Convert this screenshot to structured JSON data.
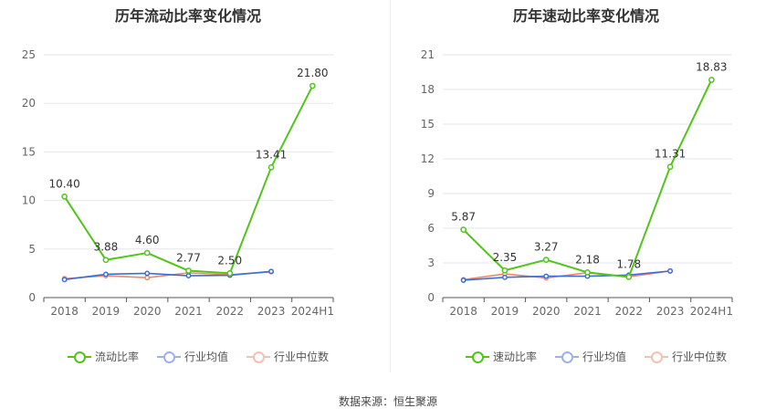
{
  "footer": {
    "source": "数据来源：恒生聚源"
  },
  "colors": {
    "green": "#52c41a",
    "blue": "#3b6fd6",
    "orange": "#ee8866",
    "grid": "#e6e6ee",
    "axis": "#555555"
  },
  "chart_data": [
    {
      "type": "line",
      "title": "历年流动比率变化情况",
      "categories": [
        "2018",
        "2019",
        "2020",
        "2021",
        "2022",
        "2023",
        "2024H1"
      ],
      "ylim": [
        0,
        25
      ],
      "yticks": [
        0,
        5,
        10,
        15,
        20,
        25
      ],
      "grid": true,
      "legend_position": "bottom",
      "series": [
        {
          "name": "流动比率",
          "color": "#52c41a",
          "values": [
            10.4,
            3.88,
            4.6,
            2.77,
            2.5,
            13.41,
            21.8
          ],
          "labels": [
            "10.40",
            "3.88",
            "4.60",
            "2.77",
            "2.50",
            "13.41",
            "21.80"
          ],
          "show_labels": true
        },
        {
          "name": "行业均值",
          "color": "#3b6fd6",
          "values": [
            1.85,
            2.4,
            2.5,
            2.25,
            2.3,
            2.7,
            null
          ],
          "show_labels": false
        },
        {
          "name": "行业中位数",
          "color": "#ee8866",
          "values": [
            1.95,
            2.25,
            2.05,
            2.55,
            2.35,
            2.65,
            null
          ],
          "show_labels": false
        }
      ]
    },
    {
      "type": "line",
      "title": "历年速动比率变化情况",
      "categories": [
        "2018",
        "2019",
        "2020",
        "2021",
        "2022",
        "2023",
        "2024H1"
      ],
      "ylim": [
        0,
        21
      ],
      "yticks": [
        0,
        3,
        6,
        9,
        12,
        15,
        18,
        21
      ],
      "grid": true,
      "legend_position": "bottom",
      "series": [
        {
          "name": "速动比率",
          "color": "#52c41a",
          "values": [
            5.87,
            2.35,
            3.27,
            2.18,
            1.78,
            11.31,
            18.83
          ],
          "labels": [
            "5.87",
            "2.35",
            "3.27",
            "2.18",
            "1.78",
            "11.31",
            "18.83"
          ],
          "show_labels": true
        },
        {
          "name": "行业均值",
          "color": "#3b6fd6",
          "values": [
            1.5,
            1.75,
            1.85,
            1.85,
            1.95,
            2.3,
            null
          ],
          "show_labels": false
        },
        {
          "name": "行业中位数",
          "color": "#ee8866",
          "values": [
            1.55,
            2.05,
            1.7,
            2.15,
            1.8,
            2.3,
            null
          ],
          "show_labels": false
        }
      ]
    }
  ]
}
